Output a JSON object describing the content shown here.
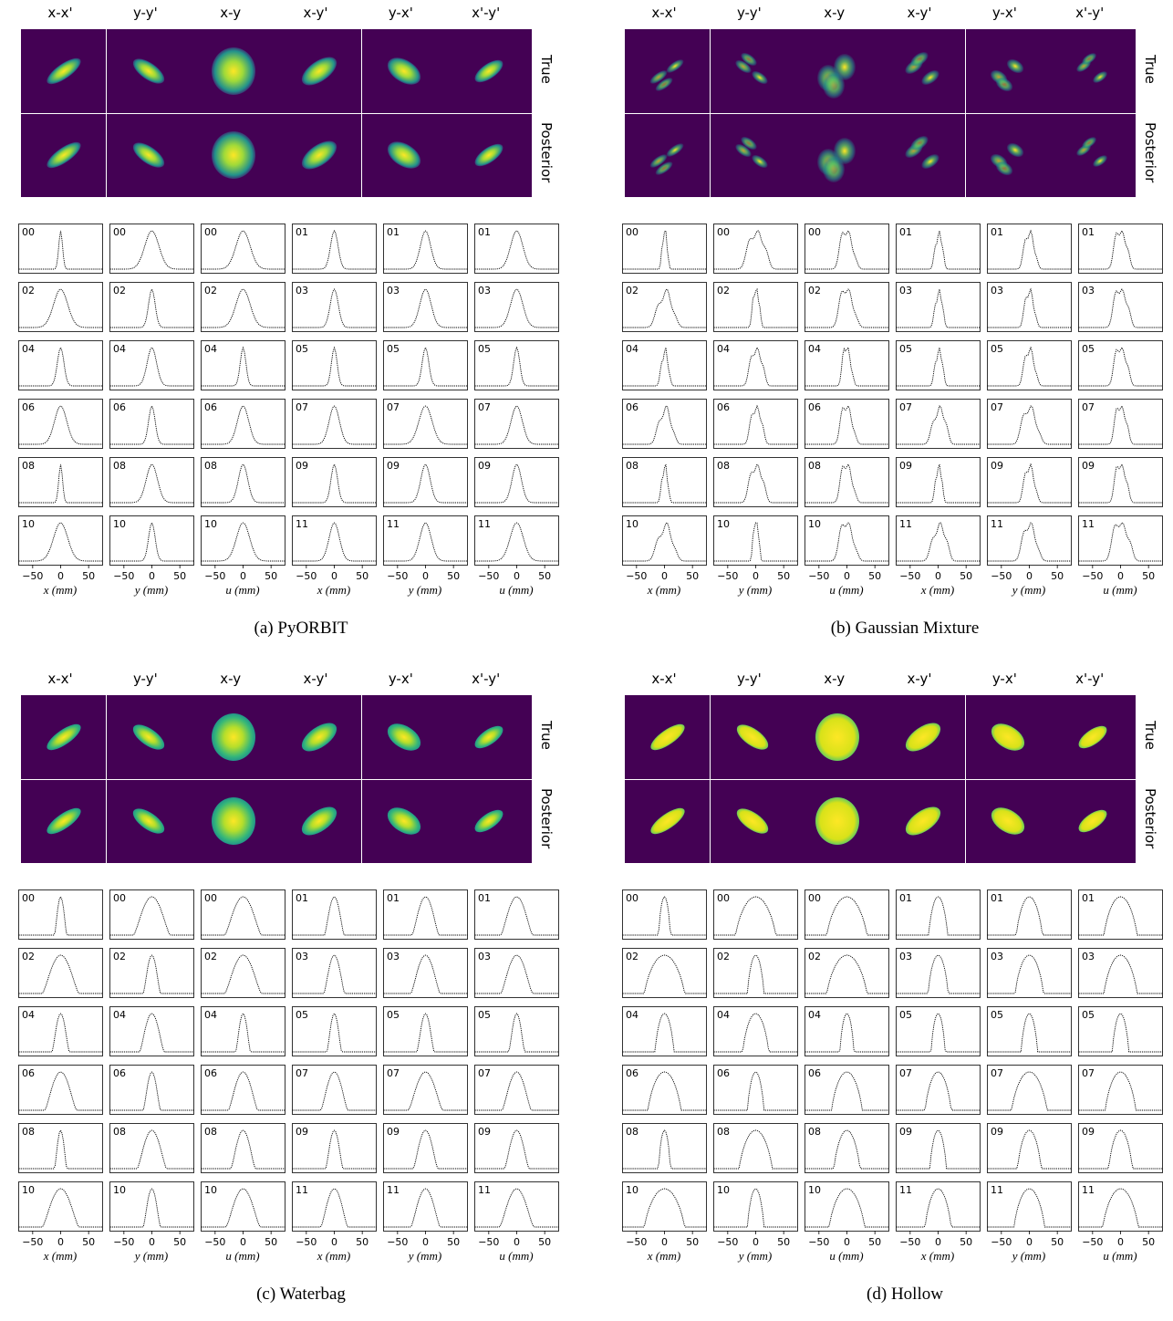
{
  "projections": [
    "x-x'",
    "y-y'",
    "x-y",
    "x-y'",
    "y-x'",
    "x'-y'"
  ],
  "row_labels": [
    "True",
    "Posterior"
  ],
  "x_axis_labels": [
    "x (mm)",
    "y (mm)",
    "u (mm)",
    "x (mm)",
    "y (mm)",
    "u (mm)"
  ],
  "x_ticks": [
    "−50",
    "0",
    "50"
  ],
  "colors": {
    "background": "#440154",
    "peak": "#fde725",
    "mid": "#21918c",
    "line": "#000000"
  },
  "panels": [
    {
      "caption": "(a) PyORBIT",
      "profile_labels": [
        [
          "00",
          "00",
          "00",
          "01",
          "01",
          "01"
        ],
        [
          "02",
          "02",
          "02",
          "03",
          "03",
          "03"
        ],
        [
          "04",
          "04",
          "04",
          "05",
          "05",
          "05"
        ],
        [
          "06",
          "06",
          "06",
          "07",
          "07",
          "07"
        ],
        [
          "08",
          "08",
          "08",
          "09",
          "09",
          "09"
        ],
        [
          "10",
          "10",
          "10",
          "11",
          "11",
          "11"
        ]
      ]
    },
    {
      "caption": "(b) Gaussian Mixture",
      "profile_labels": [
        [
          "00",
          "00",
          "00",
          "01",
          "01",
          "01"
        ],
        [
          "02",
          "02",
          "02",
          "03",
          "03",
          "03"
        ],
        [
          "04",
          "04",
          "04",
          "05",
          "05",
          "05"
        ],
        [
          "06",
          "06",
          "06",
          "07",
          "07",
          "07"
        ],
        [
          "08",
          "08",
          "08",
          "09",
          "09",
          "09"
        ],
        [
          "10",
          "10",
          "10",
          "11",
          "11",
          "11"
        ]
      ]
    },
    {
      "caption": "(c) Waterbag",
      "profile_labels": [
        [
          "00",
          "00",
          "00",
          "01",
          "01",
          "01"
        ],
        [
          "02",
          "02",
          "02",
          "03",
          "03",
          "03"
        ],
        [
          "04",
          "04",
          "04",
          "05",
          "05",
          "05"
        ],
        [
          "06",
          "06",
          "06",
          "07",
          "07",
          "07"
        ],
        [
          "08",
          "08",
          "08",
          "09",
          "09",
          "09"
        ],
        [
          "10",
          "10",
          "10",
          "11",
          "11",
          "11"
        ]
      ]
    },
    {
      "caption": "(d) Hollow",
      "profile_labels": [
        [
          "00",
          "00",
          "00",
          "01",
          "01",
          "01"
        ],
        [
          "02",
          "02",
          "02",
          "03",
          "03",
          "03"
        ],
        [
          "04",
          "04",
          "04",
          "05",
          "05",
          "05"
        ],
        [
          "06",
          "06",
          "06",
          "07",
          "07",
          "07"
        ],
        [
          "08",
          "08",
          "08",
          "09",
          "09",
          "09"
        ],
        [
          "10",
          "10",
          "10",
          "11",
          "11",
          "11"
        ]
      ]
    }
  ],
  "chart_data": {
    "type": "line",
    "xlim": [
      -75,
      75
    ],
    "x_ticks": [
      -50,
      0,
      50
    ],
    "profile_kind_by_panel": [
      "gaussian",
      "multimodal",
      "waterbag",
      "hollow"
    ],
    "profile_widths_mm": [
      [
        [
          8,
          30,
          30,
          16,
          22,
          26
        ],
        [
          30,
          14,
          30,
          17,
          24,
          26
        ],
        [
          14,
          20,
          12,
          12,
          14,
          13
        ],
        [
          26,
          14,
          24,
          22,
          28,
          24
        ],
        [
          8,
          24,
          20,
          14,
          20,
          20
        ],
        [
          30,
          14,
          28,
          22,
          24,
          28
        ]
      ],
      [
        [
          10,
          30,
          24,
          14,
          20,
          22
        ],
        [
          30,
          12,
          26,
          14,
          18,
          24
        ],
        [
          14,
          22,
          16,
          14,
          20,
          22
        ],
        [
          26,
          20,
          22,
          24,
          28,
          20
        ],
        [
          12,
          24,
          22,
          12,
          20,
          20
        ],
        [
          30,
          10,
          26,
          26,
          26,
          28
        ]
      ],
      [
        [
          10,
          30,
          30,
          16,
          22,
          26
        ],
        [
          30,
          14,
          30,
          17,
          24,
          26
        ],
        [
          14,
          20,
          12,
          12,
          14,
          13
        ],
        [
          26,
          14,
          24,
          22,
          28,
          24
        ],
        [
          10,
          24,
          20,
          14,
          20,
          20
        ],
        [
          30,
          14,
          28,
          22,
          24,
          28
        ]
      ],
      [
        [
          10,
          34,
          34,
          16,
          22,
          28
        ],
        [
          34,
          14,
          34,
          17,
          24,
          28
        ],
        [
          16,
          22,
          12,
          12,
          14,
          14
        ],
        [
          28,
          14,
          26,
          22,
          30,
          26
        ],
        [
          10,
          28,
          22,
          14,
          20,
          20
        ],
        [
          34,
          14,
          30,
          22,
          26,
          30
        ]
      ]
    ]
  }
}
